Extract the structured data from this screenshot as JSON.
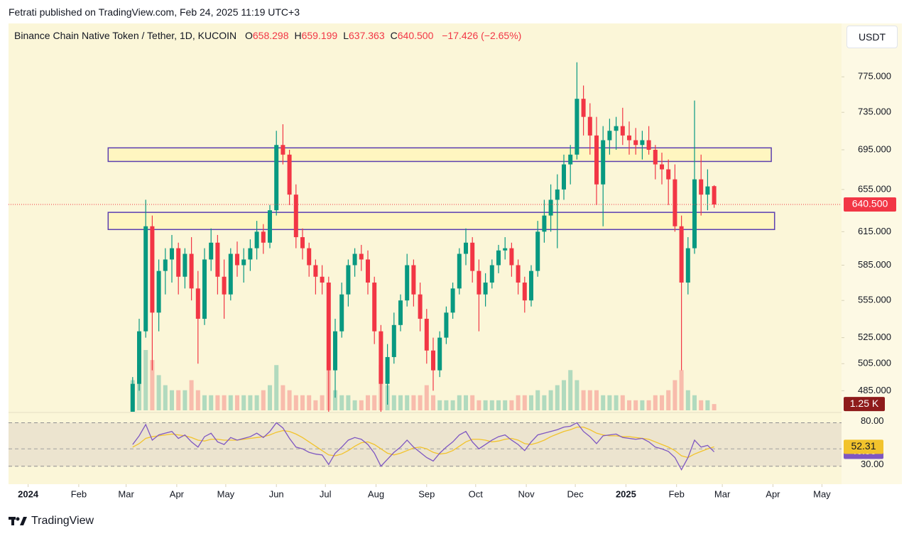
{
  "header": {
    "published": "Fetrati published on TradingView.com, Feb 24, 2025 11:19 UTC+3",
    "footer_logo": "TradingView"
  },
  "chart_data": {
    "type": "candlestick",
    "title": "Binance Chain Native Token / Tether, 1D, KUCOIN",
    "legend_items": [
      {
        "key": "O",
        "text": "658.298"
      },
      {
        "key": "H",
        "text": "659.199"
      },
      {
        "key": "L",
        "text": "637.363"
      },
      {
        "key": "C",
        "text": "640.500"
      }
    ],
    "change_label": "−17.426 (−2.65%)",
    "currency": "USDT",
    "log_scale": true,
    "up_color": "#089981",
    "down_color": "#f23645",
    "x": [
      64,
      68,
      72,
      76,
      80,
      84,
      88,
      92,
      96,
      100,
      104,
      108,
      112,
      116,
      120,
      124,
      128,
      132,
      136,
      140,
      144,
      148,
      152,
      156,
      160,
      164,
      168,
      172,
      176,
      180,
      184,
      188,
      192,
      196,
      200,
      204,
      208,
      212,
      216,
      220,
      224,
      228,
      232,
      236,
      240,
      244,
      248,
      252,
      256,
      260,
      264,
      268,
      272,
      276,
      280,
      284,
      288,
      292,
      296,
      300,
      304,
      308,
      312,
      316,
      320,
      324,
      328,
      332,
      336,
      340,
      344,
      348,
      352,
      356,
      360,
      364,
      368,
      372,
      376,
      380,
      384,
      388,
      392,
      396,
      400,
      404,
      408,
      412,
      416,
      420
    ],
    "open": [
      470,
      490,
      530,
      620,
      545,
      580,
      590,
      600,
      575,
      595,
      565,
      540,
      590,
      605,
      575,
      560,
      595,
      585,
      590,
      600,
      615,
      605,
      635,
      700,
      690,
      650,
      610,
      600,
      585,
      575,
      570,
      500,
      530,
      560,
      585,
      595,
      590,
      570,
      530,
      490,
      510,
      535,
      555,
      585,
      560,
      540,
      515,
      500,
      525,
      545,
      565,
      595,
      605,
      580,
      560,
      570,
      585,
      598,
      600,
      585,
      570,
      555,
      580,
      615,
      630,
      645,
      655,
      680,
      690,
      750,
      730,
      710,
      660,
      705,
      715,
      720,
      710,
      705,
      700,
      705,
      695,
      680,
      675,
      665,
      620,
      570,
      600,
      665,
      650,
      658.298
    ],
    "high": [
      495,
      540,
      645,
      630,
      590,
      600,
      612,
      605,
      600,
      610,
      580,
      600,
      618,
      612,
      590,
      600,
      606,
      600,
      608,
      625,
      622,
      640,
      715,
      722,
      695,
      660,
      618,
      605,
      590,
      585,
      575,
      540,
      570,
      590,
      600,
      603,
      598,
      575,
      535,
      520,
      545,
      560,
      595,
      590,
      570,
      548,
      525,
      530,
      550,
      570,
      600,
      618,
      610,
      590,
      578,
      590,
      603,
      610,
      605,
      590,
      575,
      585,
      625,
      645,
      660,
      670,
      690,
      700,
      792,
      765,
      745,
      730,
      720,
      728,
      730,
      740,
      725,
      718,
      715,
      720,
      700,
      692,
      685,
      680,
      630,
      610,
      748,
      690,
      675,
      659.199
    ],
    "low": [
      465,
      485,
      525,
      500,
      530,
      560,
      570,
      560,
      565,
      555,
      505,
      535,
      580,
      560,
      540,
      555,
      575,
      570,
      580,
      590,
      595,
      600,
      630,
      680,
      640,
      600,
      590,
      575,
      560,
      560,
      470,
      480,
      525,
      550,
      575,
      580,
      560,
      520,
      470,
      475,
      505,
      530,
      550,
      550,
      530,
      505,
      485,
      495,
      520,
      540,
      560,
      585,
      570,
      530,
      550,
      565,
      578,
      590,
      575,
      560,
      545,
      550,
      575,
      605,
      615,
      600,
      645,
      660,
      685,
      710,
      690,
      640,
      620,
      690,
      695,
      700,
      690,
      690,
      685,
      690,
      665,
      660,
      640,
      615,
      500,
      560,
      595,
      630,
      635,
      637.363
    ],
    "close": [
      490,
      530,
      620,
      545,
      580,
      590,
      600,
      575,
      595,
      565,
      540,
      590,
      605,
      575,
      560,
      595,
      585,
      590,
      600,
      615,
      605,
      635,
      700,
      690,
      650,
      610,
      600,
      585,
      575,
      570,
      500,
      530,
      560,
      585,
      595,
      590,
      570,
      530,
      490,
      510,
      535,
      555,
      585,
      560,
      540,
      515,
      500,
      525,
      545,
      565,
      595,
      605,
      580,
      560,
      570,
      585,
      598,
      600,
      585,
      570,
      555,
      580,
      615,
      630,
      645,
      655,
      680,
      690,
      750,
      730,
      710,
      660,
      705,
      715,
      720,
      710,
      705,
      700,
      705,
      695,
      680,
      675,
      665,
      620,
      570,
      600,
      665,
      650,
      658,
      640.5
    ],
    "xlim": [
      -12,
      498
    ],
    "xticks": [
      {
        "value": 0,
        "label": "2024"
      },
      {
        "value": 31,
        "label": "Feb"
      },
      {
        "value": 60,
        "label": "Mar"
      },
      {
        "value": 91,
        "label": "Apr"
      },
      {
        "value": 121,
        "label": "May"
      },
      {
        "value": 152,
        "label": "Jun"
      },
      {
        "value": 182,
        "label": "Jul"
      },
      {
        "value": 213,
        "label": "Aug"
      },
      {
        "value": 244,
        "label": "Sep"
      },
      {
        "value": 274,
        "label": "Oct"
      },
      {
        "value": 305,
        "label": "Nov"
      },
      {
        "value": 335,
        "label": "Dec"
      },
      {
        "value": 366,
        "label": "2025"
      },
      {
        "value": 397,
        "label": "Feb"
      },
      {
        "value": 425,
        "label": "Mar"
      },
      {
        "value": 456,
        "label": "Apr"
      },
      {
        "value": 486,
        "label": "May"
      }
    ],
    "ylim": [
      470,
      842
    ],
    "yticks": [
      {
        "value": 775,
        "label": "775.000"
      },
      {
        "value": 735,
        "label": "735.000"
      },
      {
        "value": 695,
        "label": "695.000"
      },
      {
        "value": 655,
        "label": "655.000"
      },
      {
        "value": 615,
        "label": "615.000"
      },
      {
        "value": 585,
        "label": "585.000"
      },
      {
        "value": 555,
        "label": "555.000"
      },
      {
        "value": 525,
        "label": "525.000"
      },
      {
        "value": 505,
        "label": "505.000"
      },
      {
        "value": 485,
        "label": "485.000"
      }
    ],
    "last_price": {
      "value": 640.5,
      "label": "640.500",
      "color": "#f23645"
    },
    "zones": [
      {
        "xlim": [
          49,
          455
        ],
        "ylim": [
          683,
          697
        ]
      },
      {
        "xlim": [
          49,
          457
        ],
        "ylim": [
          617,
          633
        ]
      }
    ],
    "zone_fill": "#fff6c0",
    "zone_stroke": "#5b3fb0",
    "volume": {
      "values": [
        6,
        9,
        12,
        10,
        7,
        5,
        4,
        4,
        4,
        6,
        4,
        3,
        3,
        3,
        3,
        3,
        3,
        3,
        3,
        3,
        4,
        5,
        9,
        5,
        4,
        3,
        3,
        3,
        2,
        3,
        8,
        4,
        3,
        3,
        2,
        2,
        3,
        3,
        9,
        5,
        3,
        3,
        3,
        3,
        3,
        5,
        3,
        2,
        2,
        2,
        3,
        3,
        3,
        2,
        2,
        2,
        2,
        2,
        2,
        3,
        3,
        3,
        4,
        3,
        4,
        5,
        6,
        8,
        6,
        4,
        4,
        4,
        3,
        3,
        3,
        3,
        2,
        2,
        2,
        2,
        3,
        3,
        4,
        6,
        8,
        4,
        3,
        2,
        2,
        1.25
      ],
      "last_label": "1.25 K",
      "lim": [
        0,
        12
      ],
      "tag_color": "#8e1b1b"
    },
    "rsi": {
      "ylim": [
        11,
        91
      ],
      "yticks": [
        {
          "value": 80,
          "label": "80.00"
        },
        {
          "value": 30,
          "label": "30.00"
        }
      ],
      "midline": 50,
      "series": [
        {
          "color": "#7e57c2",
          "values": [
            55,
            65,
            78,
            60,
            66,
            68,
            70,
            62,
            66,
            58,
            52,
            64,
            68,
            58,
            55,
            63,
            60,
            62,
            64,
            68,
            63,
            70,
            80,
            74,
            62,
            52,
            50,
            46,
            44,
            43,
            32,
            45,
            52,
            60,
            63,
            61,
            55,
            45,
            30,
            38,
            46,
            52,
            60,
            52,
            46,
            40,
            36,
            45,
            52,
            58,
            66,
            70,
            58,
            50,
            55,
            60,
            64,
            66,
            60,
            55,
            48,
            58,
            66,
            68,
            70,
            72,
            75,
            76,
            80,
            70,
            64,
            56,
            65,
            66,
            67,
            63,
            62,
            61,
            62,
            58,
            52,
            50,
            47,
            40,
            26,
            40,
            60,
            52,
            54,
            46.56
          ]
        },
        {
          "color": "#f2c32c",
          "values": [
            52,
            56,
            62,
            64,
            65,
            66,
            67,
            66,
            65,
            63,
            60,
            59,
            61,
            61,
            60,
            60,
            60,
            61,
            62,
            63,
            64,
            66,
            69,
            71,
            70,
            67,
            63,
            58,
            53,
            48,
            43,
            42,
            44,
            48,
            53,
            57,
            58,
            55,
            50,
            45,
            43,
            45,
            48,
            51,
            52,
            50,
            46,
            44,
            45,
            48,
            53,
            58,
            61,
            61,
            60,
            58,
            59,
            61,
            62,
            60,
            56,
            55,
            57,
            60,
            64,
            67,
            70,
            72,
            75,
            75,
            72,
            68,
            66,
            65,
            65,
            64,
            64,
            63,
            62,
            61,
            58,
            55,
            52,
            48,
            42,
            40,
            44,
            47,
            50,
            52.31
          ]
        }
      ]
    }
  }
}
